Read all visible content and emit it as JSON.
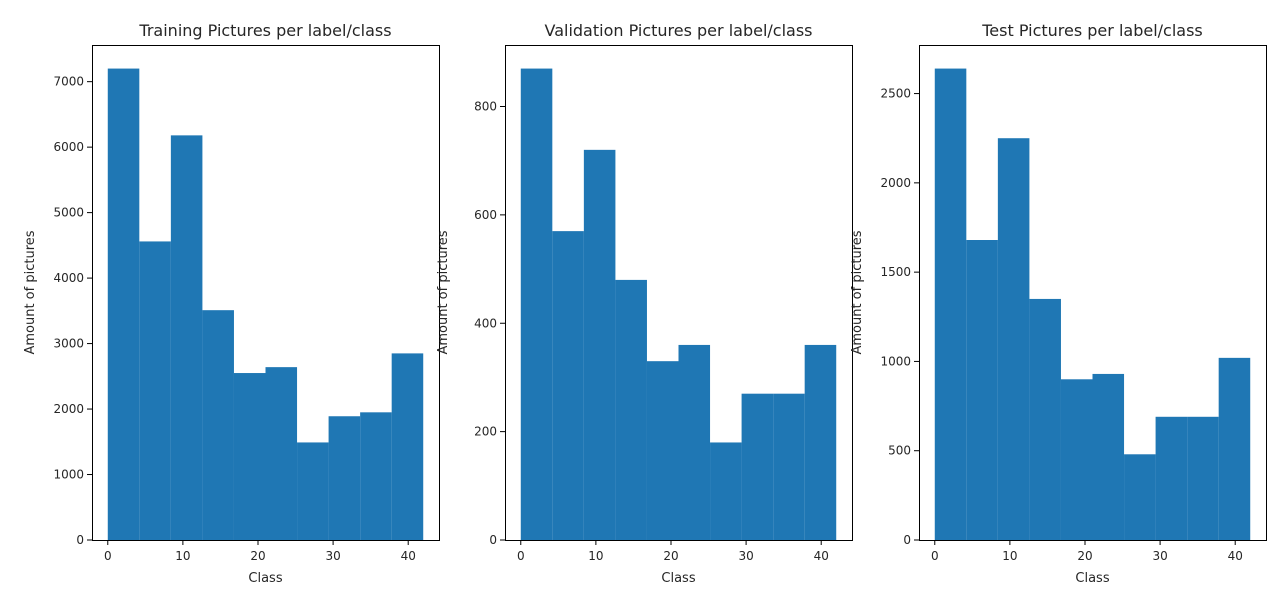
{
  "figure": {
    "bar_color": "#1f77b4",
    "background": "#ffffff"
  },
  "chart_data": [
    {
      "type": "bar",
      "title": "Training Pictures per label/class",
      "xlabel": "Class",
      "ylabel": "Amount of pictures",
      "xlim": [
        -2.1,
        44.1
      ],
      "ylim": [
        0,
        7560
      ],
      "xticks": [
        0,
        10,
        20,
        30,
        40
      ],
      "yticks": [
        0,
        1000,
        2000,
        3000,
        4000,
        5000,
        6000,
        7000
      ],
      "bin_edges": [
        0,
        4.2,
        8.4,
        12.6,
        16.8,
        21,
        25.2,
        29.4,
        33.6,
        37.8,
        42
      ],
      "values": [
        7200,
        4560,
        6180,
        3510,
        2550,
        2640,
        1490,
        1890,
        1950,
        2850
      ],
      "grid": false,
      "legend": false
    },
    {
      "type": "bar",
      "title": "Validation Pictures per label/class",
      "xlabel": "Class",
      "ylabel": "Amount of pictures",
      "xlim": [
        -2.1,
        44.1
      ],
      "ylim": [
        0,
        913.5
      ],
      "xticks": [
        0,
        10,
        20,
        30,
        40
      ],
      "yticks": [
        0,
        200,
        400,
        600,
        800
      ],
      "bin_edges": [
        0,
        4.2,
        8.4,
        12.6,
        16.8,
        21,
        25.2,
        29.4,
        33.6,
        37.8,
        42
      ],
      "values": [
        870,
        570,
        720,
        480,
        330,
        360,
        180,
        270,
        270,
        360
      ],
      "grid": false,
      "legend": false
    },
    {
      "type": "bar",
      "title": "Test Pictures per label/class",
      "xlabel": "Class",
      "ylabel": "Amount of pictures",
      "xlim": [
        -2.1,
        44.1
      ],
      "ylim": [
        0,
        2772
      ],
      "xticks": [
        0,
        10,
        20,
        30,
        40
      ],
      "yticks": [
        0,
        500,
        1000,
        1500,
        2000,
        2500
      ],
      "bin_edges": [
        0,
        4.2,
        8.4,
        12.6,
        16.8,
        21,
        25.2,
        29.4,
        33.6,
        37.8,
        42
      ],
      "values": [
        2640,
        1680,
        2250,
        1350,
        900,
        930,
        480,
        690,
        690,
        1020
      ],
      "grid": false,
      "legend": false
    }
  ]
}
